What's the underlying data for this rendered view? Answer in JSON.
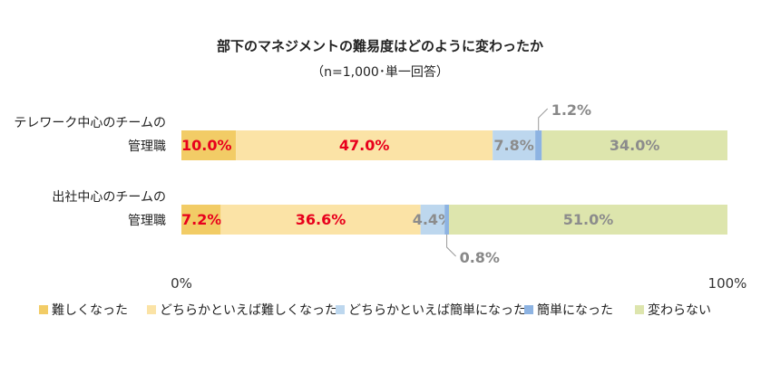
{
  "chart_data": {
    "type": "bar",
    "orientation": "horizontal",
    "stacked": true,
    "title": "部下のマネジメントの難易度はどのように変わったか",
    "subtitle": "（n=1,000･単一回答）",
    "categories": [
      [
        "テレワーク中心のチームの",
        "管理職"
      ],
      [
        "出社中心のチームの",
        "管理職"
      ]
    ],
    "series": [
      {
        "name": "難しくなった",
        "color": "#f2cc66",
        "values": [
          10.0,
          7.2
        ],
        "labels": [
          "10.0%",
          "7.2%"
        ],
        "label_color": "#e8001c"
      },
      {
        "name": "どちらかといえば難しくなった",
        "color": "#fbe3a6",
        "values": [
          47.0,
          36.6
        ],
        "labels": [
          "47.0%",
          "36.6%"
        ],
        "label_color": "#e8001c"
      },
      {
        "name": "どちらかといえば簡単になった",
        "color": "#bdd7ee",
        "values": [
          7.8,
          4.4
        ],
        "labels": [
          "7.8%",
          "4.4%"
        ],
        "label_color": "#8c8c8c"
      },
      {
        "name": "簡単になった",
        "color": "#8db3e2",
        "values": [
          1.2,
          0.8
        ],
        "labels": [
          "1.2%",
          "0.8%"
        ],
        "label_color": "#8c8c8c"
      },
      {
        "name": "変わらない",
        "color": "#dde5ad",
        "values": [
          34.0,
          51.0
        ],
        "labels": [
          "34.0%",
          "51.0%"
        ],
        "label_color": "#8c8c8c"
      }
    ],
    "xlim": [
      0,
      100
    ],
    "x_ticks": [
      "0%",
      "100%"
    ],
    "legend_position": "bottom",
    "grid": false
  }
}
